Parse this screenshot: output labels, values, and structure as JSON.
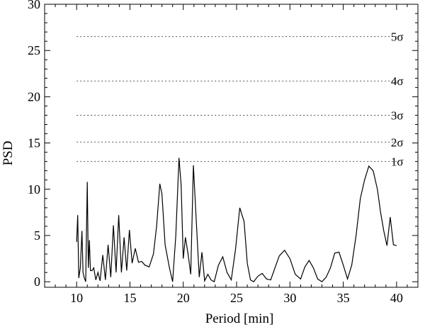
{
  "chart_data": {
    "type": "line",
    "title": "",
    "xlabel": "Period [min]",
    "ylabel": "PSD",
    "xlim": [
      7,
      42
    ],
    "ylim": [
      -0.6,
      30
    ],
    "xticks": [
      10,
      15,
      20,
      25,
      30,
      35,
      40
    ],
    "yticks": [
      0,
      5,
      10,
      15,
      20,
      25,
      30
    ],
    "grid": false,
    "legend": "none",
    "significance_levels": [
      {
        "label": "1σ",
        "value": 13.0
      },
      {
        "label": "2σ",
        "value": 15.1
      },
      {
        "label": "3σ",
        "value": 18.0
      },
      {
        "label": "4σ",
        "value": 21.7
      },
      {
        "label": "5σ",
        "value": 26.5
      }
    ],
    "significance_x_range": [
      10,
      40
    ],
    "series": [
      {
        "x": [
          10.0,
          10.1,
          10.2,
          10.35,
          10.5,
          10.6,
          10.7,
          10.85,
          11.0,
          11.1,
          11.2,
          11.3,
          11.45,
          11.6,
          11.8,
          12.0,
          12.2,
          12.45,
          12.7,
          12.95,
          13.2,
          13.45,
          13.7,
          13.95,
          14.2,
          14.45,
          14.7,
          14.95,
          15.2,
          15.5,
          15.8,
          16.1,
          16.4,
          16.8,
          17.2,
          17.5,
          17.8,
          18.0,
          18.3,
          18.7,
          19.0,
          19.3,
          19.6,
          19.8,
          20.0,
          20.2,
          20.45,
          20.7,
          20.95,
          21.2,
          21.5,
          21.75,
          22.0,
          22.3,
          22.6,
          22.9,
          23.3,
          23.7,
          24.1,
          24.5,
          24.9,
          25.3,
          25.7,
          26.0,
          26.3,
          26.6,
          27.0,
          27.4,
          27.8,
          28.2,
          28.6,
          29.0,
          29.5,
          30.0,
          30.5,
          31.0,
          31.4,
          31.8,
          32.2,
          32.6,
          33.0,
          33.4,
          33.8,
          34.2,
          34.6,
          35.0,
          35.4,
          35.8,
          36.2,
          36.6,
          37.0,
          37.4,
          37.8,
          38.2,
          38.5,
          38.8,
          39.1,
          39.4,
          39.7,
          40.0
        ],
        "y": [
          4.3,
          7.2,
          0.4,
          1.5,
          5.5,
          1.0,
          0.5,
          0.0,
          10.8,
          1.5,
          4.5,
          1.2,
          1.2,
          1.5,
          0.2,
          1.0,
          0.1,
          2.9,
          0.2,
          4.0,
          0.5,
          6.1,
          1.0,
          7.2,
          1.0,
          4.8,
          1.2,
          5.6,
          2.0,
          3.6,
          2.1,
          2.2,
          1.8,
          1.6,
          3.0,
          6.0,
          10.6,
          9.5,
          4.0,
          1.5,
          0.0,
          5.0,
          13.4,
          10.5,
          2.5,
          4.8,
          3.0,
          0.8,
          12.6,
          7.0,
          0.5,
          3.2,
          0.1,
          0.8,
          0.2,
          0.0,
          1.8,
          2.7,
          1.0,
          0.2,
          3.5,
          8.0,
          6.5,
          2.0,
          0.2,
          0.0,
          0.6,
          0.9,
          0.3,
          0.2,
          1.5,
          2.8,
          3.4,
          2.5,
          0.8,
          0.3,
          1.6,
          2.3,
          1.5,
          0.3,
          0.0,
          0.5,
          1.5,
          3.1,
          3.2,
          1.8,
          0.3,
          1.8,
          5.0,
          9.0,
          11.0,
          12.5,
          12.0,
          10.0,
          7.5,
          5.5,
          3.9,
          7.0,
          4.0,
          3.9
        ]
      }
    ]
  }
}
